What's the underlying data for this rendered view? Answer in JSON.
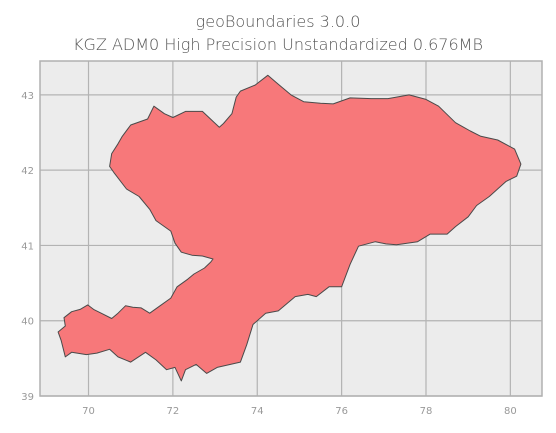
{
  "title_line1": "geoBoundaries 3.0.0",
  "title_line2": "KGZ ADM0 High Precision Unstandardized 0.676MB",
  "chart_data": {
    "type": "map",
    "region": "KGZ ADM0",
    "xlim": [
      68.85,
      80.75
    ],
    "ylim": [
      39.0,
      43.45
    ],
    "xticks": [
      70,
      72,
      74,
      76,
      78,
      80
    ],
    "yticks": [
      39,
      40,
      41,
      42,
      43
    ],
    "grid": true,
    "colors": {
      "fill": "#f7787a",
      "stroke": "#4a4a4a",
      "plot_background": "#ececec",
      "grid": "#b3b3b3",
      "frame": "#b0b0b0"
    },
    "outline_lonlat": [
      [
        69.45,
        39.52
      ],
      [
        69.35,
        39.74
      ],
      [
        69.28,
        39.85
      ],
      [
        69.45,
        39.93
      ],
      [
        69.42,
        40.04
      ],
      [
        69.6,
        40.12
      ],
      [
        69.8,
        40.15
      ],
      [
        69.98,
        40.21
      ],
      [
        70.12,
        40.15
      ],
      [
        70.3,
        40.1
      ],
      [
        70.55,
        40.03
      ],
      [
        70.7,
        40.1
      ],
      [
        70.88,
        40.2
      ],
      [
        71.05,
        40.18
      ],
      [
        71.25,
        40.17
      ],
      [
        71.45,
        40.1
      ],
      [
        71.7,
        40.2
      ],
      [
        71.95,
        40.3
      ],
      [
        72.1,
        40.45
      ],
      [
        72.35,
        40.55
      ],
      [
        72.5,
        40.62
      ],
      [
        72.75,
        40.7
      ],
      [
        72.9,
        40.78
      ],
      [
        72.95,
        40.82
      ],
      [
        72.7,
        40.86
      ],
      [
        72.45,
        40.87
      ],
      [
        72.2,
        40.91
      ],
      [
        72.05,
        41.03
      ],
      [
        71.95,
        41.19
      ],
      [
        71.6,
        41.33
      ],
      [
        71.45,
        41.48
      ],
      [
        71.2,
        41.65
      ],
      [
        70.9,
        41.75
      ],
      [
        70.6,
        41.97
      ],
      [
        70.5,
        42.05
      ],
      [
        70.55,
        42.22
      ],
      [
        70.7,
        42.35
      ],
      [
        70.8,
        42.45
      ],
      [
        71.0,
        42.6
      ],
      [
        71.4,
        42.68
      ],
      [
        71.55,
        42.85
      ],
      [
        71.8,
        42.75
      ],
      [
        72.0,
        42.7
      ],
      [
        72.3,
        42.78
      ],
      [
        72.7,
        42.78
      ],
      [
        73.1,
        42.57
      ],
      [
        73.2,
        42.62
      ],
      [
        73.4,
        42.75
      ],
      [
        73.5,
        42.97
      ],
      [
        73.6,
        43.05
      ],
      [
        73.95,
        43.13
      ],
      [
        74.25,
        43.26
      ],
      [
        74.5,
        43.14
      ],
      [
        74.8,
        43.0
      ],
      [
        75.1,
        42.91
      ],
      [
        75.5,
        42.89
      ],
      [
        75.8,
        42.88
      ],
      [
        76.2,
        42.96
      ],
      [
        76.7,
        42.95
      ],
      [
        77.1,
        42.95
      ],
      [
        77.6,
        43.0
      ],
      [
        78.0,
        42.94
      ],
      [
        78.3,
        42.85
      ],
      [
        78.7,
        42.63
      ],
      [
        79.05,
        42.52
      ],
      [
        79.3,
        42.45
      ],
      [
        79.7,
        42.4
      ],
      [
        80.1,
        42.28
      ],
      [
        80.25,
        42.08
      ],
      [
        80.15,
        41.92
      ],
      [
        79.9,
        41.85
      ],
      [
        79.5,
        41.65
      ],
      [
        79.2,
        41.53
      ],
      [
        79.0,
        41.38
      ],
      [
        78.7,
        41.25
      ],
      [
        78.5,
        41.15
      ],
      [
        78.1,
        41.15
      ],
      [
        77.8,
        41.05
      ],
      [
        77.3,
        41.01
      ],
      [
        77.05,
        41.02
      ],
      [
        76.8,
        41.05
      ],
      [
        76.4,
        40.99
      ],
      [
        76.2,
        40.75
      ],
      [
        76.0,
        40.45
      ],
      [
        75.7,
        40.45
      ],
      [
        75.4,
        40.32
      ],
      [
        75.2,
        40.35
      ],
      [
        74.9,
        40.32
      ],
      [
        74.5,
        40.13
      ],
      [
        74.2,
        40.1
      ],
      [
        73.9,
        39.95
      ],
      [
        73.75,
        39.68
      ],
      [
        73.6,
        39.45
      ],
      [
        73.05,
        39.38
      ],
      [
        72.8,
        39.3
      ],
      [
        72.55,
        39.42
      ],
      [
        72.3,
        39.35
      ],
      [
        72.2,
        39.2
      ],
      [
        72.05,
        39.38
      ],
      [
        71.85,
        39.35
      ],
      [
        71.6,
        39.48
      ],
      [
        71.35,
        39.58
      ],
      [
        71.0,
        39.45
      ],
      [
        70.7,
        39.52
      ],
      [
        70.5,
        39.62
      ],
      [
        70.2,
        39.57
      ],
      [
        69.95,
        39.55
      ],
      [
        69.6,
        39.58
      ]
    ]
  }
}
